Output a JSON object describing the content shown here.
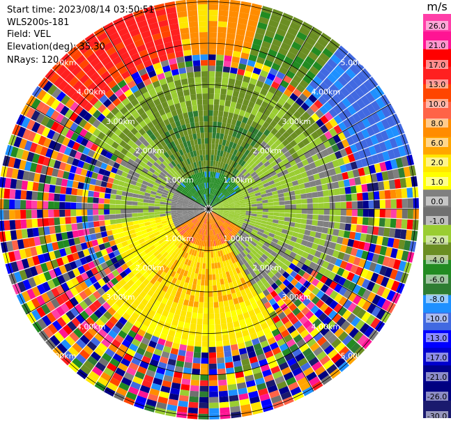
{
  "info": {
    "start_time": "Start time: 2023/08/14 03:50:51",
    "device": "WLS200s-181",
    "field": "Field: VEL",
    "elevation": "Elevation(deg): 35.30",
    "nrays": "NRays: 120"
  },
  "chart_data": {
    "type": "polar-ppi",
    "field": "VEL",
    "nrays": 120,
    "ring_labels": [
      "1.00km",
      "2.00km",
      "3.00km",
      "4.00km",
      "5.00km"
    ],
    "colorbar": {
      "unit": "m/s",
      "ticks": [
        "26.0",
        "21.0",
        "17.0",
        "13.0",
        "10.0",
        "8.0",
        "6.0",
        "2.0",
        "1.0",
        "0.0",
        "-1.0",
        "-2.0",
        "-4.0",
        "-6.0",
        "-8.0",
        "-10.0",
        "-13.0",
        "-17.0",
        "-21.0",
        "-26.0",
        "-30.0"
      ],
      "colors": [
        "#ff3fa8",
        "#ff1493",
        "#ff0000",
        "#ff2020",
        "#ff4500",
        "#ff6347",
        "#ff8c00",
        "#ffa500",
        "#ffe600",
        "#ffff00",
        "#808080",
        "#707070",
        "#9acd32",
        "#6b8e23",
        "#228b22",
        "#2e7d32",
        "#1e90ff",
        "#4169e1",
        "#0000ff",
        "#0000cd",
        "#00008b",
        "#000080",
        "#1a1a6e"
      ]
    }
  }
}
